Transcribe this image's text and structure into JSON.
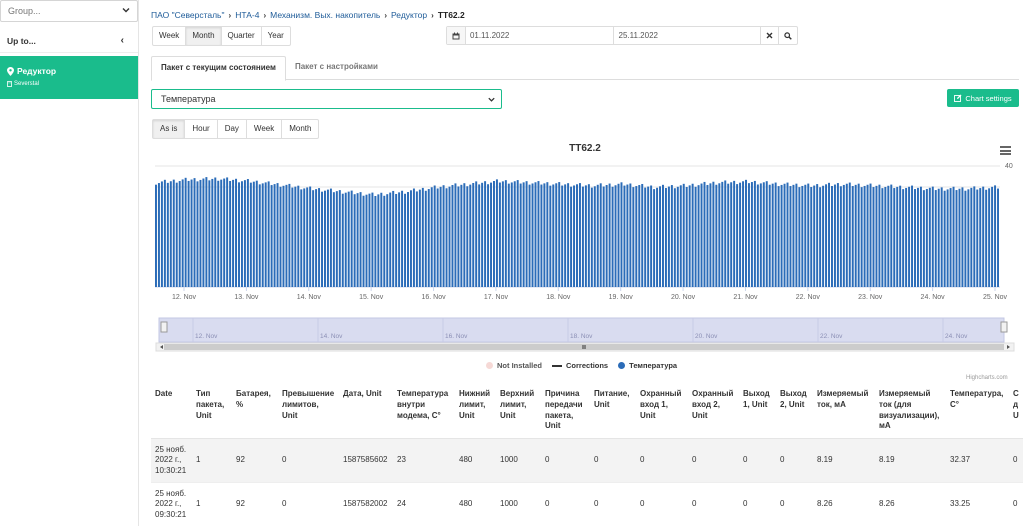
{
  "sidebar": {
    "group_placeholder": "Group...",
    "up_to": "Up to...",
    "active_item": {
      "title": "Редуктор",
      "subtitle": "Severstal"
    }
  },
  "breadcrumb": {
    "items": [
      "ПАО \"Северсталь\"",
      "НТА-4",
      "Механизм. Вых. накопитель",
      "Редуктор"
    ],
    "current": "ТТ62.2"
  },
  "period_buttons": [
    "Week",
    "Month",
    "Quarter",
    "Year"
  ],
  "period_active": "Month",
  "date_from": "01.11.2022",
  "date_to": "25.11.2022",
  "tabs": [
    "Пакет с текущим состоянием",
    "Пакет с настройками"
  ],
  "tab_active": "Пакет с текущим состоянием",
  "parameter_select": "Температура",
  "chart_settings_label": "Chart settings",
  "aggregation_buttons": [
    "As is",
    "Hour",
    "Day",
    "Week",
    "Month"
  ],
  "aggregation_active": "As is",
  "chart_data": {
    "type": "bar",
    "title": "ТТ62.2",
    "xlabel": "",
    "ylabel": "",
    "x_tick_labels": [
      "12. Nov",
      "13. Nov",
      "14. Nov",
      "15. Nov",
      "16. Nov",
      "17. Nov",
      "18. Nov",
      "19. Nov",
      "20. Nov",
      "21. Nov",
      "22. Nov",
      "23. Nov",
      "24. Nov",
      "25. Nov"
    ],
    "y_tick_labels": [
      "40"
    ],
    "ylim": [
      0,
      42
    ],
    "series": [
      {
        "name": "Температура",
        "color": "#2b6cb8",
        "values_daily_profile": [
          34.5,
          35.5,
          35.8,
          35.0,
          33.8,
          32.5,
          31.5,
          30.5,
          31.5,
          33.0,
          34.0,
          35.0,
          34.5,
          34.0,
          33.5,
          34.0,
          33.0,
          33.5,
          34.5,
          34.8,
          34.0,
          33.5,
          34.0,
          33.5,
          33.0,
          32.5,
          32.5,
          33.0
        ]
      }
    ],
    "navigator_labels": [
      "12. Nov",
      "14. Nov",
      "16. Nov",
      "18. Nov",
      "20. Nov",
      "22. Nov",
      "24. Nov"
    ],
    "legend": [
      "Not Installed",
      "Corrections",
      "Температура"
    ],
    "legend_colors": {
      "Not Installed": "#f6d9d6",
      "Corrections": "#333333",
      "Температура": "#2b6cb8"
    },
    "grid": true,
    "credits": "Highcharts.com"
  },
  "table": {
    "headers": [
      "Date",
      "Тип пакета, Unit",
      "Батарея, %",
      "Превышение лимитов, Unit",
      "Дата, Unit",
      "Температура внутри модема, C°",
      "Нижний лимит, Unit",
      "Верхний лимит, Unit",
      "Причина передачи пакета, Unit",
      "Питание, Unit",
      "Охранный вход 1, Unit",
      "Охранный вход 2, Unit",
      "Выход 1, Unit",
      "Выход 2, Unit",
      "Измеряемый ток, мА",
      "Измеряемый ток (для визуализации), мА",
      "Температура, C°",
      "С д U"
    ],
    "rows": [
      [
        "25 нояб. 2022 г., 10:30:21",
        "1",
        "92",
        "0",
        "1587585602",
        "23",
        "480",
        "1000",
        "0",
        "0",
        "0",
        "0",
        "0",
        "0",
        "8.19",
        "8.19",
        "32.37",
        "0"
      ],
      [
        "25 нояб. 2022 г., 09:30:21",
        "1",
        "92",
        "0",
        "1587582002",
        "24",
        "480",
        "1000",
        "0",
        "0",
        "0",
        "0",
        "0",
        "0",
        "8.26",
        "8.26",
        "33.25",
        "0"
      ]
    ]
  }
}
